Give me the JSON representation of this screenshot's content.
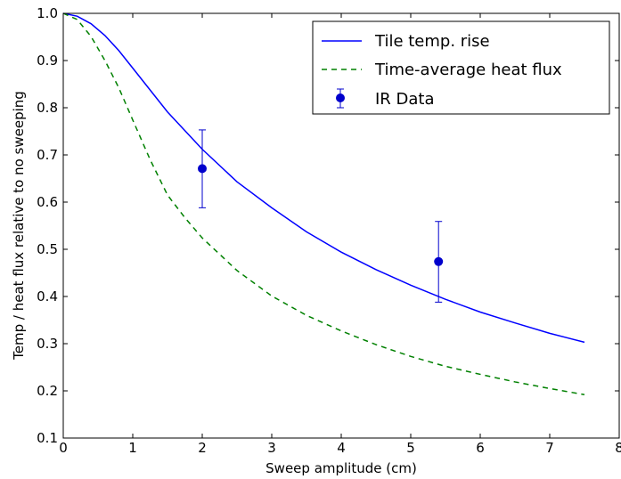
{
  "chart_data": {
    "type": "line",
    "xlabel": "Sweep amplitude (cm)",
    "ylabel": "Temp / heat flux relative to no sweeping",
    "xlim": [
      0,
      8
    ],
    "ylim": [
      0.1,
      1.0
    ],
    "xticks": [
      "0",
      "1",
      "2",
      "3",
      "4",
      "5",
      "6",
      "7",
      "8"
    ],
    "yticks": [
      "0.1",
      "0.2",
      "0.3",
      "0.4",
      "0.5",
      "0.6",
      "0.7",
      "0.8",
      "0.9",
      "1.0"
    ],
    "grid": false,
    "legend_position": "top-right",
    "series": [
      {
        "name": "Tile temp. rise",
        "style": "solid",
        "color": "#0000ff",
        "x": [
          0,
          0.2,
          0.4,
          0.6,
          0.8,
          1.0,
          1.5,
          2.0,
          2.5,
          3.0,
          3.5,
          4.0,
          4.5,
          5.0,
          5.5,
          6.0,
          6.5,
          7.0,
          7.5
        ],
        "y": [
          1.0,
          0.994,
          0.978,
          0.953,
          0.921,
          0.884,
          0.791,
          0.712,
          0.643,
          0.588,
          0.537,
          0.494,
          0.457,
          0.424,
          0.394,
          0.367,
          0.344,
          0.322,
          0.303
        ]
      },
      {
        "name": "Time-average heat flux",
        "style": "dashed",
        "color": "#008000",
        "x": [
          0,
          0.2,
          0.4,
          0.6,
          0.8,
          1.0,
          1.25,
          1.5,
          1.75,
          2.0,
          2.5,
          3.0,
          3.5,
          4.0,
          4.5,
          5.0,
          5.5,
          6.0,
          6.5,
          7.0,
          7.5
        ],
        "y": [
          1.0,
          0.987,
          0.951,
          0.9,
          0.842,
          0.774,
          0.69,
          0.615,
          0.567,
          0.524,
          0.455,
          0.401,
          0.36,
          0.327,
          0.298,
          0.273,
          0.252,
          0.235,
          0.219,
          0.205,
          0.192
        ]
      }
    ],
    "errorbars": {
      "name": "IR Data",
      "color": "#0000cc",
      "points": [
        {
          "x": 2.0,
          "y": 0.671,
          "ylow": 0.588,
          "yhigh": 0.753
        },
        {
          "x": 5.4,
          "y": 0.474,
          "ylow": 0.388,
          "yhigh": 0.559
        }
      ]
    }
  }
}
